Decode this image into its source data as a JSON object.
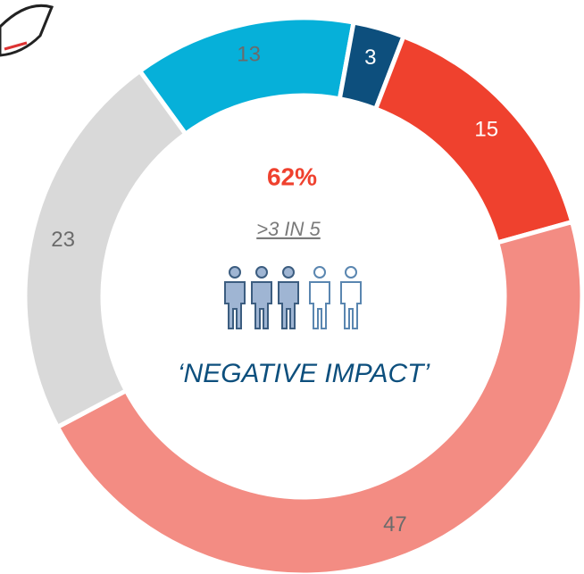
{
  "chart_data": {
    "type": "donut",
    "values": [
      13,
      3,
      15,
      47,
      23
    ],
    "colors": [
      "#06b0d9",
      "#0d4f7d",
      "#ef412e",
      "#f38c83",
      "#d9d9d9"
    ],
    "label_colors": [
      "#6b6b6b",
      "#ffffff",
      "#ffffff",
      "#6b6b6b",
      "#6b6b6b"
    ],
    "start_angle": -36,
    "headline": "62%",
    "subline": ">3 IN 5",
    "caption": "‘NEGATIVE IMPACT’"
  }
}
